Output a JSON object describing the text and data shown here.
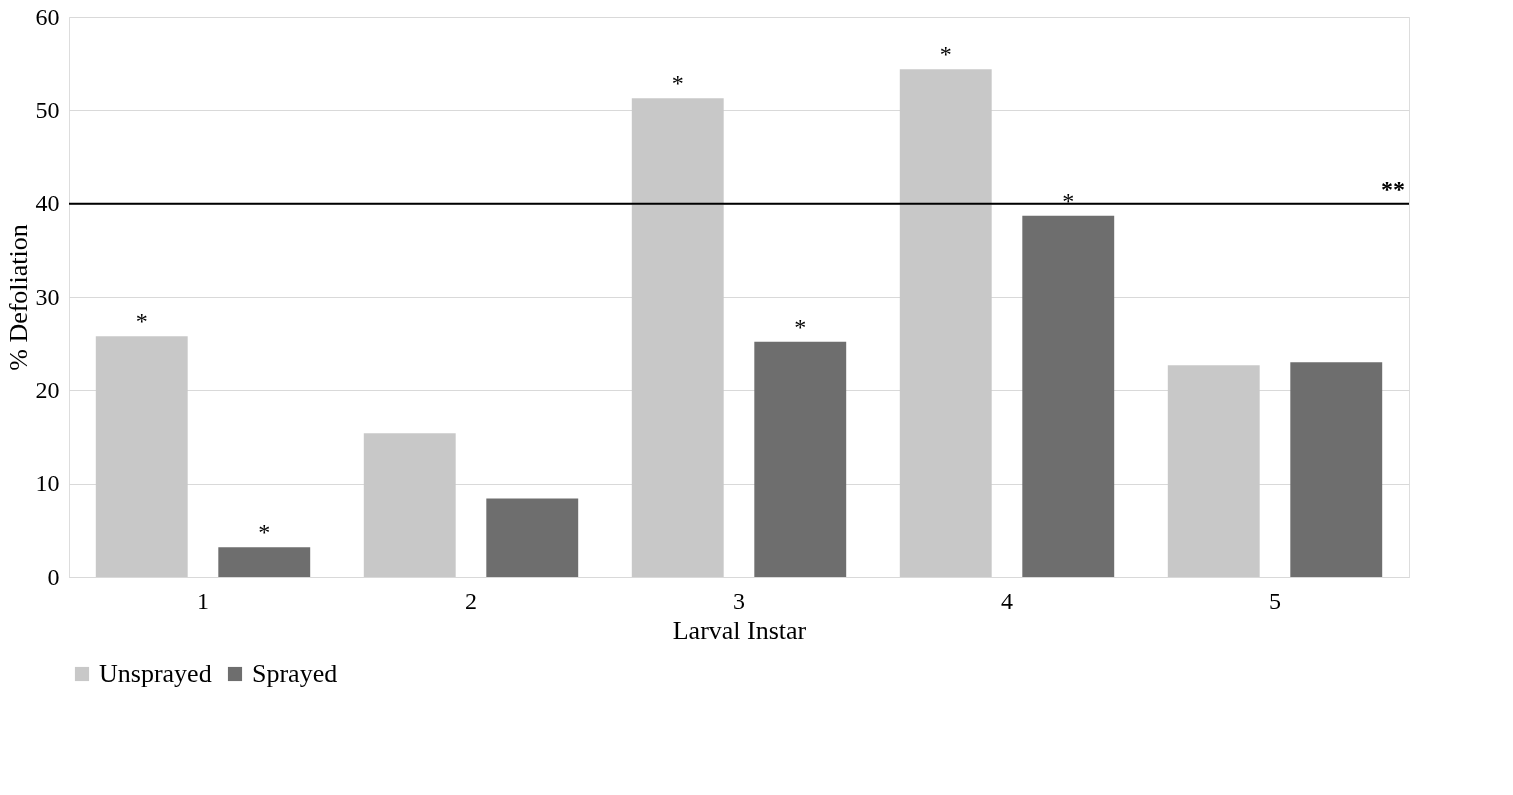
{
  "chart_data": {
    "type": "bar",
    "xlabel": "Larval Instar",
    "ylabel": "% Defoliation",
    "categories": [
      "1",
      "2",
      "3",
      "4",
      "5"
    ],
    "series": [
      {
        "name": "Unsprayed",
        "color": "#c8c8c8",
        "values": [
          25.8,
          15.4,
          51.3,
          54.4,
          22.7
        ],
        "value_labels": [
          "*",
          null,
          "*",
          "*",
          null
        ]
      },
      {
        "name": "Sprayed",
        "color": "#6e6e6e",
        "values": [
          3.2,
          8.4,
          25.2,
          38.7,
          23.0
        ],
        "value_labels": [
          "*",
          null,
          "*",
          "*",
          null
        ]
      }
    ],
    "ylim": [
      0,
      60
    ],
    "yticks": [
      0,
      10,
      20,
      30,
      40,
      50,
      60
    ],
    "grid": "y",
    "legend": "bottom",
    "ref_lines": [
      {
        "axis": "y",
        "value": 40,
        "label": "**",
        "color": "#000000",
        "line_style": "solid"
      }
    ]
  }
}
